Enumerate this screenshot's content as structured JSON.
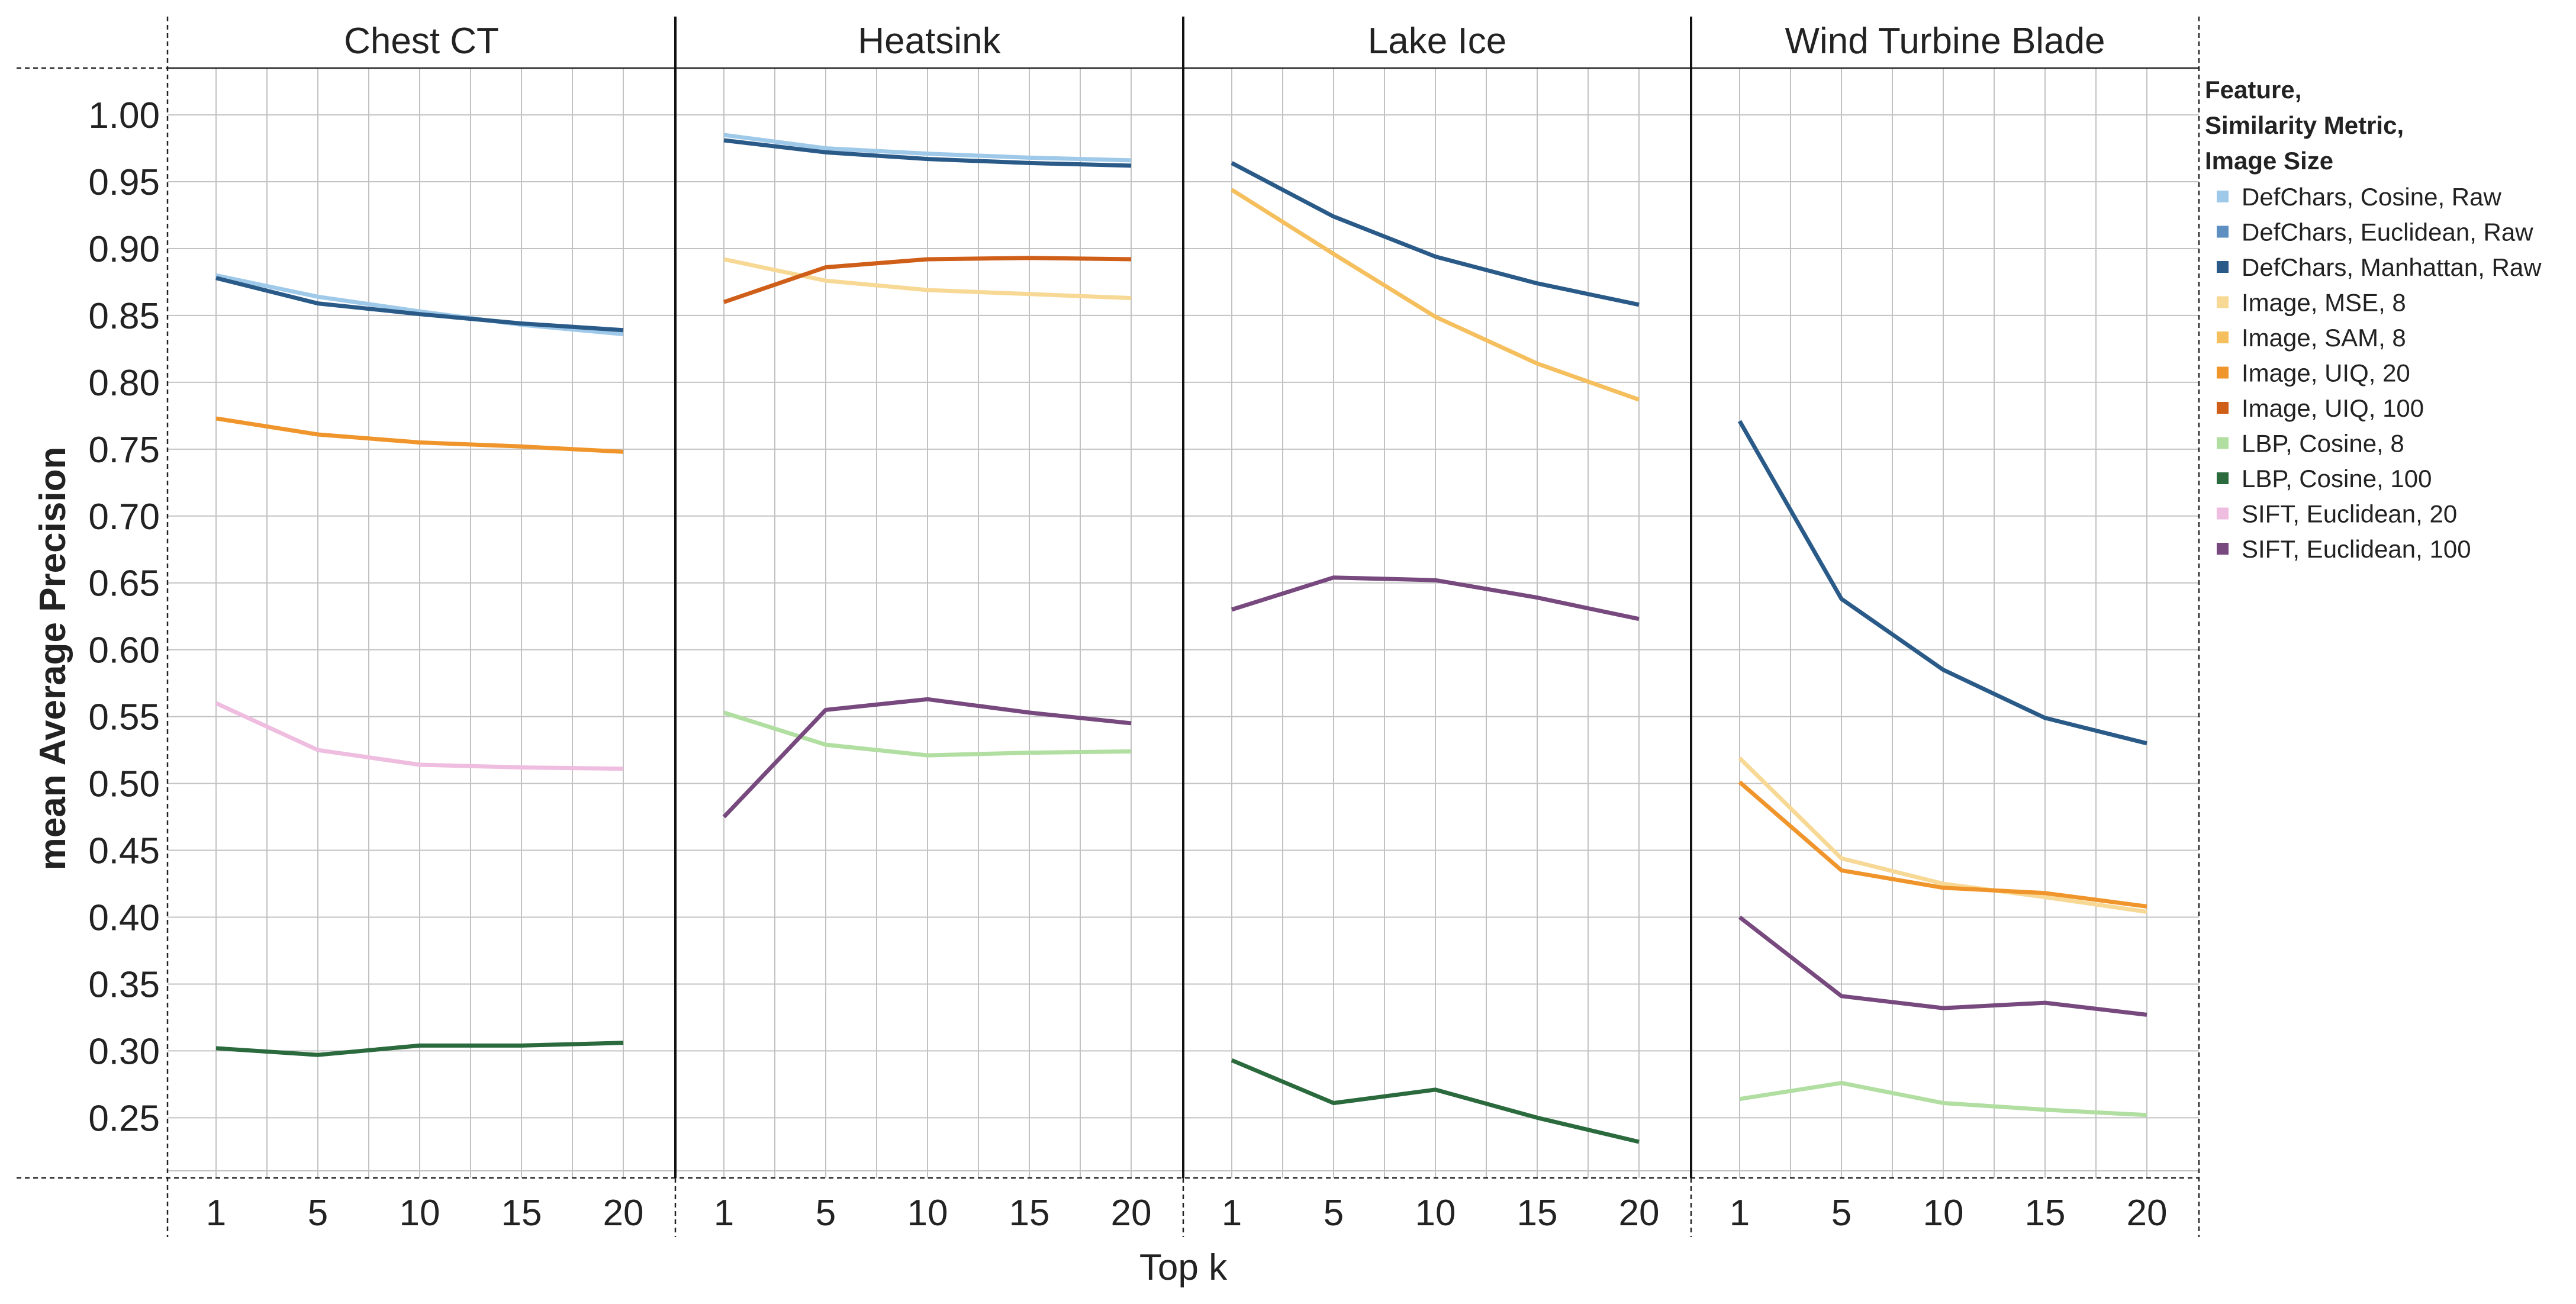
{
  "chart_data": {
    "type": "line",
    "facet_labels": [
      "Chest CT",
      "Heatsink",
      "Lake Ice",
      "Wind Turbine Blade"
    ],
    "x": [
      1,
      5,
      10,
      15,
      20
    ],
    "x_tick_labels": [
      "1",
      "5",
      "10",
      "15",
      "20"
    ],
    "xlabel": "Top k",
    "ylabel": "mean Average Precision",
    "ylim": [
      0.205,
      1.035
    ],
    "y_ticks": [
      0.25,
      0.3,
      0.35,
      0.4,
      0.45,
      0.5,
      0.55,
      0.6,
      0.65,
      0.7,
      0.75,
      0.8,
      0.85,
      0.9,
      0.95,
      1.0
    ],
    "y_tick_labels": [
      "0.25",
      "0.30",
      "0.35",
      "0.40",
      "0.45",
      "0.50",
      "0.55",
      "0.60",
      "0.65",
      "0.70",
      "0.75",
      "0.80",
      "0.85",
      "0.90",
      "0.95",
      "1.00"
    ],
    "grid": true,
    "legend": {
      "title_lines": [
        "Feature,",
        "Similarity Metric,",
        "Image Size"
      ],
      "placement": "right"
    },
    "series": [
      {
        "name": "DefChars, Cosine, Raw",
        "color": "#9ec9e9",
        "values": {
          "Chest CT": [
            0.88,
            0.864,
            0.853,
            0.843,
            0.836
          ],
          "Heatsink": [
            0.985,
            0.975,
            0.971,
            0.968,
            0.966
          ],
          "Lake Ice": null,
          "Wind Turbine Blade": null
        }
      },
      {
        "name": "DefChars, Euclidean, Raw",
        "color": "#5d8fc1",
        "values": {
          "Chest CT": null,
          "Heatsink": null,
          "Lake Ice": null,
          "Wind Turbine Blade": null
        }
      },
      {
        "name": "DefChars, Manhattan, Raw",
        "color": "#2a5a88",
        "values": {
          "Chest CT": [
            0.878,
            0.859,
            0.851,
            0.844,
            0.839
          ],
          "Heatsink": [
            0.981,
            0.972,
            0.967,
            0.964,
            0.962
          ],
          "Lake Ice": [
            0.964,
            0.924,
            0.894,
            0.874,
            0.858
          ],
          "Wind Turbine Blade": [
            0.771,
            0.638,
            0.585,
            0.549,
            0.53
          ]
        }
      },
      {
        "name": "Image, MSE, 8",
        "color": "#f7d995",
        "values": {
          "Chest CT": null,
          "Heatsink": [
            0.892,
            0.876,
            0.869,
            0.866,
            0.863
          ],
          "Lake Ice": null,
          "Wind Turbine Blade": [
            0.519,
            0.444,
            0.425,
            0.415,
            0.404
          ]
        }
      },
      {
        "name": "Image, SAM, 8",
        "color": "#f5bf5e",
        "values": {
          "Chest CT": null,
          "Heatsink": null,
          "Lake Ice": [
            0.944,
            0.896,
            0.849,
            0.814,
            0.787
          ],
          "Wind Turbine Blade": null
        }
      },
      {
        "name": "Image, UIQ, 20",
        "color": "#f0952b",
        "values": {
          "Chest CT": [
            0.773,
            0.761,
            0.755,
            0.752,
            0.748
          ],
          "Heatsink": null,
          "Lake Ice": null,
          "Wind Turbine Blade": [
            0.501,
            0.435,
            0.422,
            0.418,
            0.408
          ]
        }
      },
      {
        "name": "Image, UIQ, 100",
        "color": "#cf5e18",
        "values": {
          "Chest CT": null,
          "Heatsink": [
            0.86,
            0.886,
            0.892,
            0.893,
            0.892
          ],
          "Lake Ice": null,
          "Wind Turbine Blade": null
        }
      },
      {
        "name": "LBP, Cosine, 8",
        "color": "#b1dea1",
        "values": {
          "Chest CT": null,
          "Heatsink": [
            0.553,
            0.529,
            0.521,
            0.523,
            0.524
          ],
          "Lake Ice": null,
          "Wind Turbine Blade": [
            0.264,
            0.276,
            0.261,
            0.256,
            0.252
          ]
        }
      },
      {
        "name": "LBP, Cosine, 100",
        "color": "#2a6a3d",
        "values": {
          "Chest CT": [
            0.302,
            0.297,
            0.304,
            0.304,
            0.306
          ],
          "Heatsink": null,
          "Lake Ice": [
            0.293,
            0.261,
            0.271,
            0.25,
            0.232
          ],
          "Wind Turbine Blade": null
        }
      },
      {
        "name": "SIFT, Euclidean, 20",
        "color": "#efbddf",
        "values": {
          "Chest CT": [
            0.56,
            0.525,
            0.514,
            0.512,
            0.511
          ],
          "Heatsink": null,
          "Lake Ice": null,
          "Wind Turbine Blade": null
        }
      },
      {
        "name": "SIFT, Euclidean, 100",
        "color": "#77497e",
        "values": {
          "Chest CT": null,
          "Heatsink": [
            0.475,
            0.555,
            0.563,
            0.553,
            0.545
          ],
          "Lake Ice": [
            0.63,
            0.654,
            0.652,
            0.639,
            0.623
          ],
          "Wind Turbine Blade": [
            0.4,
            0.341,
            0.332,
            0.336,
            0.327
          ]
        }
      }
    ]
  }
}
